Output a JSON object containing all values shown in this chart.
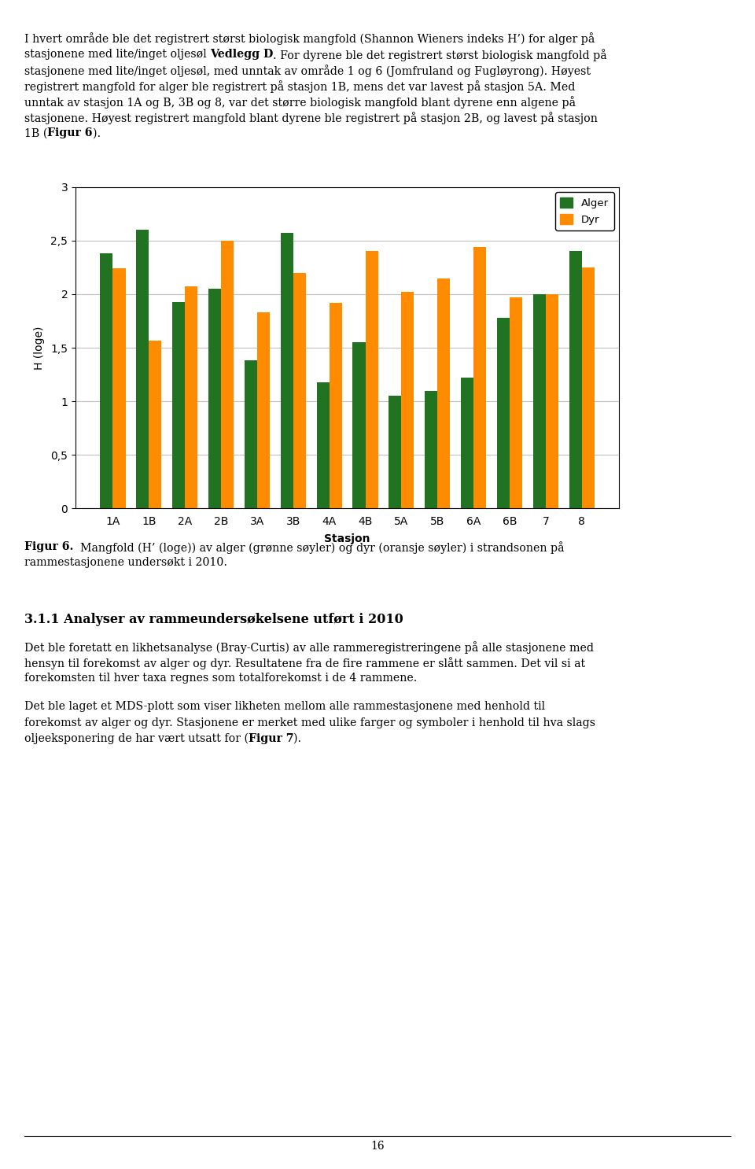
{
  "stations": [
    "1A",
    "1B",
    "2A",
    "2B",
    "3A",
    "3B",
    "4A",
    "4B",
    "5A",
    "5B",
    "6A",
    "6B",
    "7",
    "8"
  ],
  "alger": [
    2.38,
    2.6,
    1.93,
    2.05,
    1.38,
    2.57,
    1.18,
    1.55,
    1.05,
    1.1,
    1.22,
    1.78,
    2.0,
    2.4
  ],
  "dyr": [
    2.24,
    1.57,
    2.07,
    2.5,
    1.83,
    2.2,
    1.92,
    2.4,
    2.02,
    2.15,
    2.44,
    1.97,
    2.0,
    2.25
  ],
  "alger_color": "#217321",
  "dyr_color": "#FF8C00",
  "ylabel": "H (loge)",
  "xlabel": "Stasjon",
  "ylim": [
    0,
    3
  ],
  "yticks": [
    0,
    0.5,
    1,
    1.5,
    2,
    2.5,
    3
  ],
  "ytick_labels": [
    "0",
    "0,5",
    "1",
    "1,5",
    "2",
    "2,5",
    "3"
  ],
  "legend_labels": [
    "Alger",
    "Dyr"
  ],
  "bar_width": 0.35,
  "figsize": [
    9.6,
    14.86
  ],
  "page_number": "16",
  "intro_line1": "I hvert område ble det registrert størst biologisk mangfold (Shannon Wieners indeks H’) for alger på",
  "intro_line2": "stasjonene med lite/inget oljesøl ",
  "intro_line2_bold": "Vedlegg D",
  "intro_line2_rest": ". For dyrene ble det registrert størst biologisk mangfold på",
  "intro_line3": "stasjonene med lite/inget oljesøl, med unntak av område 1 og 6 (Jomfruland og Fugløyrong). Høyest",
  "intro_line4": "registrert mangfold for alger ble registrert på stasjon 1B, mens det var lavest på stasjon 5A. Med",
  "intro_line5": "unntak av stasjon 1A og B, 3B og 8, var det større biologisk mangfold blant dyrene enn algene på",
  "intro_line6": "stasjonene. Høyest registrert mangfold blant dyrene ble registrert på stasjon 2B, og lavest på stasjon",
  "intro_line7_a": "1B (",
  "intro_line7_bold": "Figur 6",
  "intro_line7_b": ").",
  "fig_caption_bold": "Figur 6.",
  "fig_caption_rest": "  Mangfold (H’ (loge)) av alger (grønne søyler) og dyr (oransje søyler) i strandsonen på",
  "fig_caption_line2": "rammestasjonene undersøkt i 2010.",
  "section_title": "3.1.1 Analyser av rammeundersøkelsene utført i 2010",
  "sect_text1_line1": "Det ble foretatt en likhetsanalyse (Bray-Curtis) av alle rammeregistreringene på alle stasjonene med",
  "sect_text1_line2": "hensyn til forekomst av alger og dyr. Resultatene fra de fire rammene er slått sammen. Det vil si at",
  "sect_text1_line3": "forekomsten til hver taxa regnes som totalforekomst i de 4 rammene.",
  "sect_text2_line1": "Det ble laget et MDS-plott som viser likheten mellom alle rammestasjonene med henhold til",
  "sect_text2_line2": "forekomst av alger og dyr. Stasjonene er merket med ulike farger og symboler i henhold til hva slags",
  "sect_text2_line3": "oljeeksponering de har vært utsatt for (",
  "sect_text2_line3_bold": "Figur 7",
  "sect_text2_line3_end": ")."
}
